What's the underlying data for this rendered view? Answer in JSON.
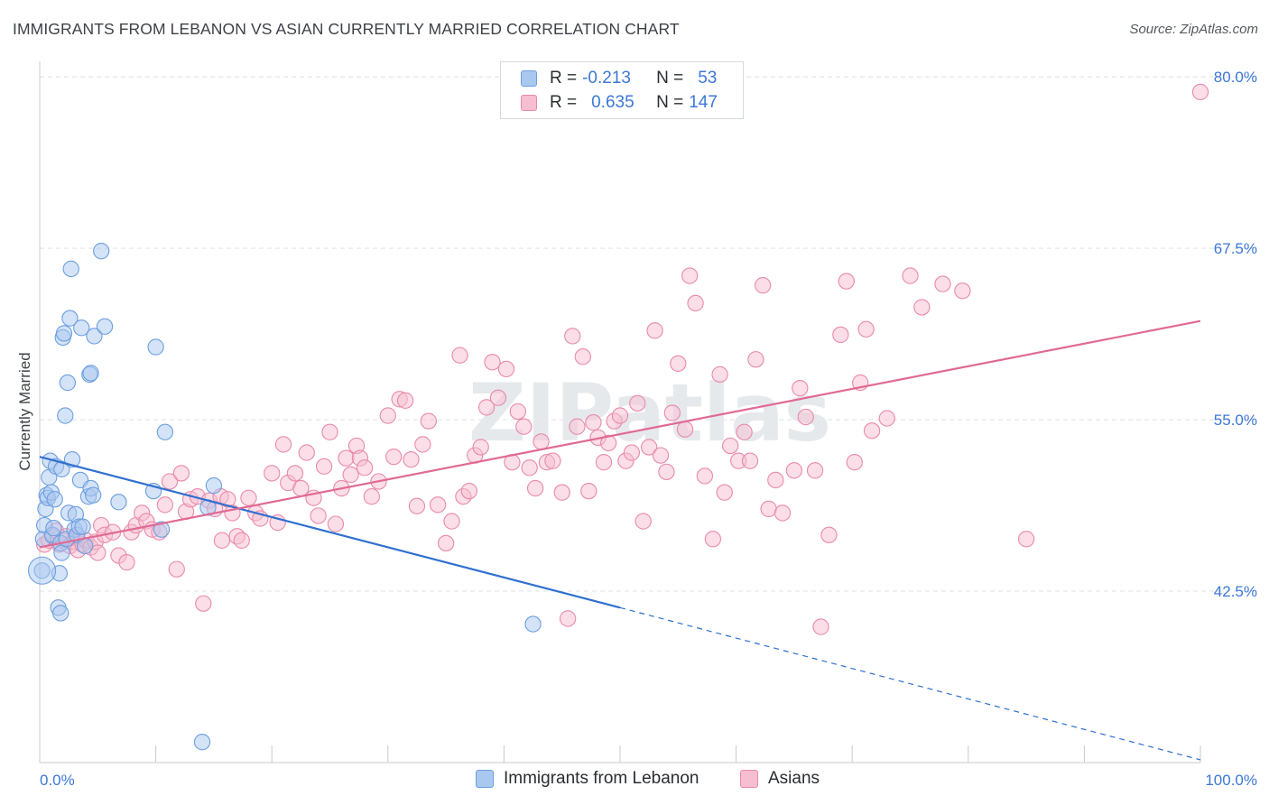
{
  "title": "IMMIGRANTS FROM LEBANON VS ASIAN CURRENTLY MARRIED CORRELATION CHART",
  "source": "Source: ZipAtlas.com",
  "watermark": "ZIPatlas",
  "legend": {
    "rows": [
      {
        "r_label": "R =",
        "r_value": "-0.213",
        "n_label": "N =",
        "n_value": "53"
      },
      {
        "r_label": "R =",
        "r_value": "0.635",
        "n_label": "N =",
        "n_value": "147"
      }
    ]
  },
  "bottom_legend": [
    "Immigrants from Lebanon",
    "Asians"
  ],
  "colors": {
    "blue_fill": "#a9c8f0",
    "blue_stroke": "#6c9fe0",
    "blue_line": "#2f6fd0",
    "pink_fill": "#f7bdd0",
    "pink_stroke": "#e98aab",
    "pink_line": "#e06a95",
    "grid": "#dde0e3",
    "axis_label": "#3d78d6"
  },
  "chart_data": {
    "type": "scatter",
    "title": "IMMIGRANTS FROM LEBANON VS ASIAN CURRENTLY MARRIED CORRELATION CHART",
    "xlabel": "",
    "ylabel": "Currently Married",
    "xlim": [
      0,
      100
    ],
    "ylim": [
      30,
      81
    ],
    "x_tick_labels": [
      "0.0%",
      "100.0%"
    ],
    "y_ticks": [
      42.5,
      55.0,
      67.5,
      80.0
    ],
    "y_tick_labels": [
      "42.5%",
      "55.0%",
      "67.5%",
      "80.0%"
    ],
    "grid": true,
    "legend_position": "top-center",
    "series": [
      {
        "name": "Immigrants from Lebanon",
        "color": "#6c9fe0",
        "r": -0.213,
        "n": 53,
        "trend": {
          "x0": 0,
          "y0": 52.3,
          "x1": 50,
          "y1": 41.3,
          "dashed_to_x": 100,
          "dashed_to_y": 30.2
        },
        "points": [
          [
            0.2,
            44.0
          ],
          [
            0.3,
            46.3
          ],
          [
            0.4,
            47.3
          ],
          [
            0.5,
            48.5
          ],
          [
            0.6,
            49.5
          ],
          [
            0.7,
            49.3
          ],
          [
            0.8,
            50.8
          ],
          [
            0.9,
            52.0
          ],
          [
            1.0,
            49.7
          ],
          [
            1.1,
            46.6
          ],
          [
            1.2,
            47.1
          ],
          [
            1.3,
            49.2
          ],
          [
            1.4,
            51.6
          ],
          [
            1.6,
            41.3
          ],
          [
            1.7,
            43.8
          ],
          [
            1.8,
            46.0
          ],
          [
            1.9,
            51.4
          ],
          [
            2.0,
            61.0
          ],
          [
            2.1,
            61.3
          ],
          [
            1.8,
            40.9
          ],
          [
            1.9,
            45.3
          ],
          [
            2.2,
            55.3
          ],
          [
            2.4,
            57.7
          ],
          [
            2.5,
            48.2
          ],
          [
            2.6,
            62.4
          ],
          [
            2.7,
            66.0
          ],
          [
            2.3,
            46.3
          ],
          [
            2.8,
            52.1
          ],
          [
            3.0,
            47.0
          ],
          [
            3.1,
            48.1
          ],
          [
            3.2,
            46.6
          ],
          [
            3.4,
            47.2
          ],
          [
            3.5,
            50.6
          ],
          [
            3.6,
            61.7
          ],
          [
            3.7,
            47.2
          ],
          [
            3.9,
            45.8
          ],
          [
            4.2,
            49.4
          ],
          [
            4.3,
            58.3
          ],
          [
            4.4,
            58.4
          ],
          [
            4.4,
            50.0
          ],
          [
            4.6,
            49.5
          ],
          [
            4.7,
            61.1
          ],
          [
            5.3,
            67.3
          ],
          [
            5.6,
            61.8
          ],
          [
            6.8,
            49.0
          ],
          [
            9.8,
            49.8
          ],
          [
            10.0,
            60.3
          ],
          [
            10.5,
            47.0
          ],
          [
            10.8,
            54.1
          ],
          [
            14.0,
            31.5
          ],
          [
            14.5,
            48.6
          ],
          [
            15.0,
            50.2
          ],
          [
            42.5,
            40.1
          ]
        ]
      },
      {
        "name": "Asians",
        "color": "#e98aab",
        "r": 0.635,
        "n": 147,
        "trend": {
          "x0": 0,
          "y0": 45.7,
          "x1": 100,
          "y1": 62.2
        },
        "points": [
          [
            0.4,
            45.9
          ],
          [
            0.8,
            46.2
          ],
          [
            1.1,
            46.5
          ],
          [
            1.4,
            46.9
          ],
          [
            1.7,
            45.9
          ],
          [
            2.0,
            46.2
          ],
          [
            2.3,
            46.5
          ],
          [
            2.6,
            45.8
          ],
          [
            2.9,
            46.1
          ],
          [
            3.1,
            46.4
          ],
          [
            3.3,
            45.5
          ],
          [
            3.7,
            45.9
          ],
          [
            4.0,
            46.2
          ],
          [
            4.4,
            45.7
          ],
          [
            4.8,
            46.1
          ],
          [
            5.0,
            45.3
          ],
          [
            5.3,
            47.3
          ],
          [
            5.6,
            46.6
          ],
          [
            6.3,
            46.8
          ],
          [
            6.8,
            45.1
          ],
          [
            7.5,
            44.6
          ],
          [
            7.9,
            46.8
          ],
          [
            8.3,
            47.3
          ],
          [
            8.8,
            48.2
          ],
          [
            9.2,
            47.6
          ],
          [
            9.7,
            47.0
          ],
          [
            10.3,
            46.8
          ],
          [
            10.8,
            48.8
          ],
          [
            11.2,
            50.5
          ],
          [
            11.8,
            44.1
          ],
          [
            12.2,
            51.1
          ],
          [
            12.6,
            48.3
          ],
          [
            13.0,
            49.2
          ],
          [
            13.6,
            49.4
          ],
          [
            14.1,
            41.6
          ],
          [
            14.6,
            49.1
          ],
          [
            15.1,
            48.5
          ],
          [
            15.6,
            49.4
          ],
          [
            15.7,
            46.2
          ],
          [
            16.2,
            49.2
          ],
          [
            16.6,
            48.2
          ],
          [
            17.0,
            46.5
          ],
          [
            17.4,
            46.2
          ],
          [
            18.0,
            49.3
          ],
          [
            18.6,
            48.2
          ],
          [
            19.0,
            47.8
          ],
          [
            20.0,
            51.1
          ],
          [
            20.5,
            47.5
          ],
          [
            21.0,
            53.2
          ],
          [
            21.4,
            50.4
          ],
          [
            22.0,
            51.1
          ],
          [
            22.5,
            50.0
          ],
          [
            23.0,
            52.6
          ],
          [
            23.6,
            49.3
          ],
          [
            24.0,
            48.0
          ],
          [
            24.5,
            51.6
          ],
          [
            25.0,
            54.1
          ],
          [
            25.5,
            47.4
          ],
          [
            26.0,
            50.0
          ],
          [
            26.4,
            52.2
          ],
          [
            26.8,
            51.0
          ],
          [
            27.3,
            53.1
          ],
          [
            27.6,
            52.2
          ],
          [
            28.0,
            51.5
          ],
          [
            28.6,
            49.4
          ],
          [
            29.2,
            50.5
          ],
          [
            30.0,
            55.3
          ],
          [
            30.5,
            52.3
          ],
          [
            31.0,
            56.5
          ],
          [
            31.5,
            56.4
          ],
          [
            32.0,
            52.1
          ],
          [
            32.5,
            48.7
          ],
          [
            33.0,
            53.2
          ],
          [
            33.5,
            54.9
          ],
          [
            34.3,
            48.8
          ],
          [
            35.0,
            46.0
          ],
          [
            35.5,
            47.6
          ],
          [
            36.2,
            59.7
          ],
          [
            36.5,
            49.4
          ],
          [
            37.0,
            49.8
          ],
          [
            37.5,
            52.4
          ],
          [
            38.0,
            53.0
          ],
          [
            38.5,
            55.9
          ],
          [
            39.0,
            59.2
          ],
          [
            39.5,
            56.6
          ],
          [
            40.2,
            58.7
          ],
          [
            40.7,
            51.9
          ],
          [
            41.2,
            55.6
          ],
          [
            41.7,
            54.5
          ],
          [
            42.2,
            51.5
          ],
          [
            42.7,
            50.0
          ],
          [
            43.2,
            53.4
          ],
          [
            43.7,
            51.9
          ],
          [
            44.2,
            52.0
          ],
          [
            45.0,
            49.7
          ],
          [
            45.5,
            40.5
          ],
          [
            45.9,
            61.1
          ],
          [
            46.3,
            54.5
          ],
          [
            46.8,
            59.6
          ],
          [
            47.3,
            49.8
          ],
          [
            47.7,
            54.8
          ],
          [
            48.1,
            53.7
          ],
          [
            48.6,
            51.9
          ],
          [
            49.0,
            53.3
          ],
          [
            49.5,
            54.9
          ],
          [
            50.0,
            55.3
          ],
          [
            50.5,
            52.0
          ],
          [
            51.0,
            52.6
          ],
          [
            51.5,
            56.2
          ],
          [
            52.0,
            47.6
          ],
          [
            52.5,
            53.0
          ],
          [
            53.0,
            61.5
          ],
          [
            53.5,
            52.4
          ],
          [
            54.0,
            51.2
          ],
          [
            54.5,
            55.5
          ],
          [
            55.0,
            59.1
          ],
          [
            55.6,
            54.3
          ],
          [
            56.0,
            65.5
          ],
          [
            56.5,
            63.5
          ],
          [
            57.3,
            50.9
          ],
          [
            58.0,
            46.3
          ],
          [
            58.6,
            58.3
          ],
          [
            59.0,
            49.7
          ],
          [
            59.5,
            53.1
          ],
          [
            60.2,
            52.0
          ],
          [
            60.7,
            54.1
          ],
          [
            61.2,
            52.0
          ],
          [
            61.7,
            59.4
          ],
          [
            62.3,
            64.8
          ],
          [
            62.8,
            48.5
          ],
          [
            63.4,
            50.6
          ],
          [
            64.0,
            48.2
          ],
          [
            65.0,
            51.3
          ],
          [
            65.5,
            57.3
          ],
          [
            66.0,
            55.2
          ],
          [
            66.8,
            51.3
          ],
          [
            67.3,
            39.9
          ],
          [
            68.0,
            46.6
          ],
          [
            69.0,
            61.2
          ],
          [
            69.5,
            65.1
          ],
          [
            70.2,
            51.9
          ],
          [
            70.7,
            57.7
          ],
          [
            71.2,
            61.6
          ],
          [
            71.7,
            54.2
          ],
          [
            73.0,
            55.1
          ],
          [
            75.0,
            65.5
          ],
          [
            76.0,
            63.2
          ],
          [
            77.8,
            64.9
          ],
          [
            79.5,
            64.4
          ],
          [
            85.0,
            46.3
          ],
          [
            100.0,
            78.9
          ]
        ]
      }
    ]
  }
}
